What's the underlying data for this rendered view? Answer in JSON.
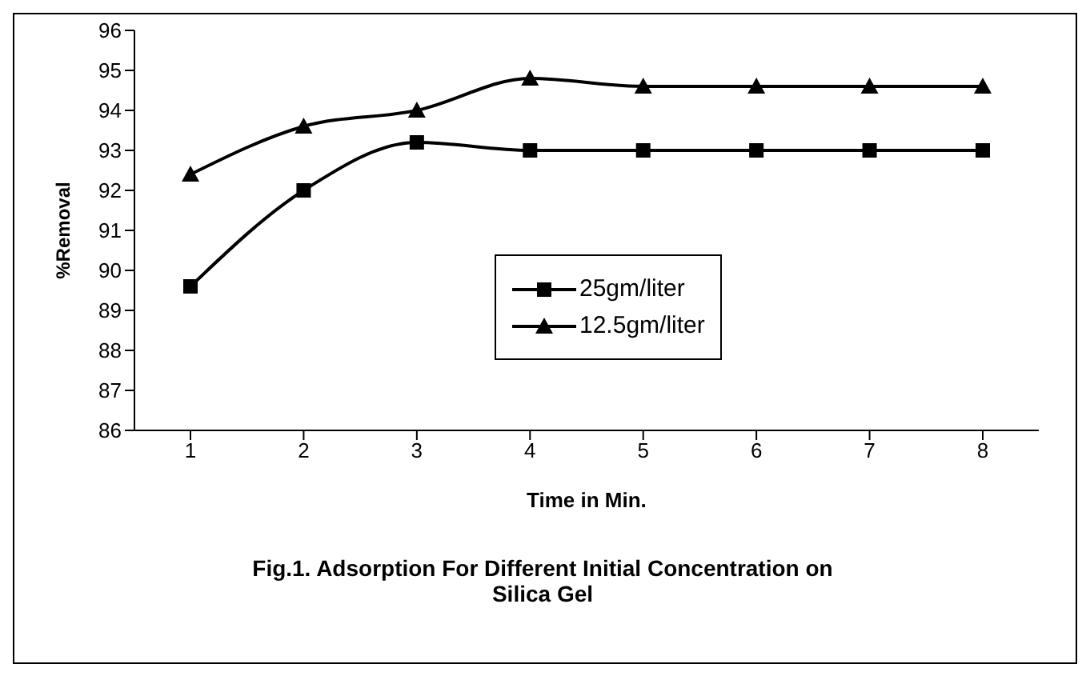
{
  "chart_data": {
    "type": "line",
    "title": "Fig.1. Adsorption For Different Initial Concentration on Silica Gel",
    "xlabel": "Time in Min.",
    "ylabel": "%Removal",
    "categories": [
      "1",
      "2",
      "3",
      "4",
      "5",
      "6",
      "7",
      "8"
    ],
    "series": [
      {
        "name": "25gm/liter",
        "color": "#000000",
        "marker": "square",
        "values": [
          89.6,
          92.0,
          93.2,
          93.0,
          93.0,
          93.0,
          93.0,
          93.0
        ]
      },
      {
        "name": "12.5gm/liter",
        "color": "#000000",
        "marker": "triangle",
        "values": [
          92.4,
          93.6,
          94.0,
          94.8,
          94.6,
          94.6,
          94.6,
          94.6
        ]
      }
    ],
    "ylim": [
      86,
      96
    ],
    "yticks": [
      86,
      87,
      88,
      89,
      90,
      91,
      92,
      93,
      94,
      95,
      96
    ],
    "legend": "center",
    "line_style": "solid"
  }
}
